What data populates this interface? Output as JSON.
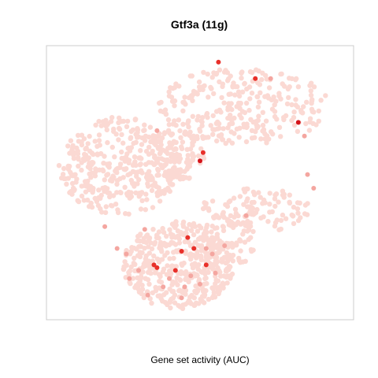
{
  "chart_data": {
    "type": "scatter",
    "title": "Gtf3a (11g)",
    "xlabel": "Gene set activity (AUC)",
    "ylabel": "",
    "axes_visible": false,
    "grid": false,
    "legend": "none",
    "colors": {
      "low": "#fbd9d3",
      "mid": "#f4a6a0",
      "high": "#e8302a",
      "max": "#d4141a",
      "frame": "#cccccc"
    },
    "background_density": [
      {
        "region": "upper-right lobe",
        "cx": 0.64,
        "cy": 0.78,
        "rx": 0.28,
        "ry": 0.14,
        "n": 290
      },
      {
        "region": "left lobe",
        "cx": 0.24,
        "cy": 0.56,
        "rx": 0.2,
        "ry": 0.18,
        "n": 380
      },
      {
        "region": "left-center",
        "cx": 0.42,
        "cy": 0.6,
        "rx": 0.1,
        "ry": 0.1,
        "n": 110
      },
      {
        "region": "right band",
        "cx": 0.68,
        "cy": 0.4,
        "rx": 0.18,
        "ry": 0.08,
        "n": 110
      },
      {
        "region": "bottom cluster",
        "cx": 0.43,
        "cy": 0.2,
        "rx": 0.18,
        "ry": 0.16,
        "n": 430
      },
      {
        "region": "lower right shoulder",
        "cx": 0.58,
        "cy": 0.28,
        "rx": 0.1,
        "ry": 0.1,
        "n": 90
      }
    ],
    "highlighted_points": [
      {
        "x": 0.56,
        "y": 0.94,
        "level": "high"
      },
      {
        "x": 0.73,
        "y": 0.88,
        "level": "mid"
      },
      {
        "x": 0.68,
        "y": 0.88,
        "level": "high"
      },
      {
        "x": 0.82,
        "y": 0.72,
        "level": "max"
      },
      {
        "x": 0.84,
        "y": 0.67,
        "level": "mid"
      },
      {
        "x": 0.36,
        "y": 0.69,
        "level": "mid"
      },
      {
        "x": 0.5,
        "y": 0.58,
        "level": "max"
      },
      {
        "x": 0.51,
        "y": 0.61,
        "level": "high"
      },
      {
        "x": 0.87,
        "y": 0.48,
        "level": "mid"
      },
      {
        "x": 0.85,
        "y": 0.53,
        "level": "mid"
      },
      {
        "x": 0.65,
        "y": 0.38,
        "level": "mid"
      },
      {
        "x": 0.19,
        "y": 0.34,
        "level": "mid"
      },
      {
        "x": 0.32,
        "y": 0.33,
        "level": "mid"
      },
      {
        "x": 0.46,
        "y": 0.3,
        "level": "high"
      },
      {
        "x": 0.48,
        "y": 0.26,
        "level": "high"
      },
      {
        "x": 0.44,
        "y": 0.25,
        "level": "high"
      },
      {
        "x": 0.52,
        "y": 0.26,
        "level": "mid"
      },
      {
        "x": 0.54,
        "y": 0.24,
        "level": "mid"
      },
      {
        "x": 0.58,
        "y": 0.27,
        "level": "mid"
      },
      {
        "x": 0.23,
        "y": 0.26,
        "level": "mid"
      },
      {
        "x": 0.26,
        "y": 0.24,
        "level": "mid"
      },
      {
        "x": 0.3,
        "y": 0.18,
        "level": "mid"
      },
      {
        "x": 0.27,
        "y": 0.15,
        "level": "mid"
      },
      {
        "x": 0.36,
        "y": 0.19,
        "level": "high"
      },
      {
        "x": 0.4,
        "y": 0.15,
        "level": "mid"
      },
      {
        "x": 0.42,
        "y": 0.18,
        "level": "high"
      },
      {
        "x": 0.47,
        "y": 0.16,
        "level": "mid"
      },
      {
        "x": 0.5,
        "y": 0.13,
        "level": "mid"
      },
      {
        "x": 0.45,
        "y": 0.12,
        "level": "mid"
      },
      {
        "x": 0.38,
        "y": 0.12,
        "level": "mid"
      },
      {
        "x": 0.33,
        "y": 0.09,
        "level": "mid"
      },
      {
        "x": 0.44,
        "y": 0.08,
        "level": "mid"
      },
      {
        "x": 0.35,
        "y": 0.2,
        "level": "high"
      },
      {
        "x": 0.52,
        "y": 0.2,
        "level": "high"
      },
      {
        "x": 0.55,
        "y": 0.17,
        "level": "mid"
      }
    ]
  }
}
